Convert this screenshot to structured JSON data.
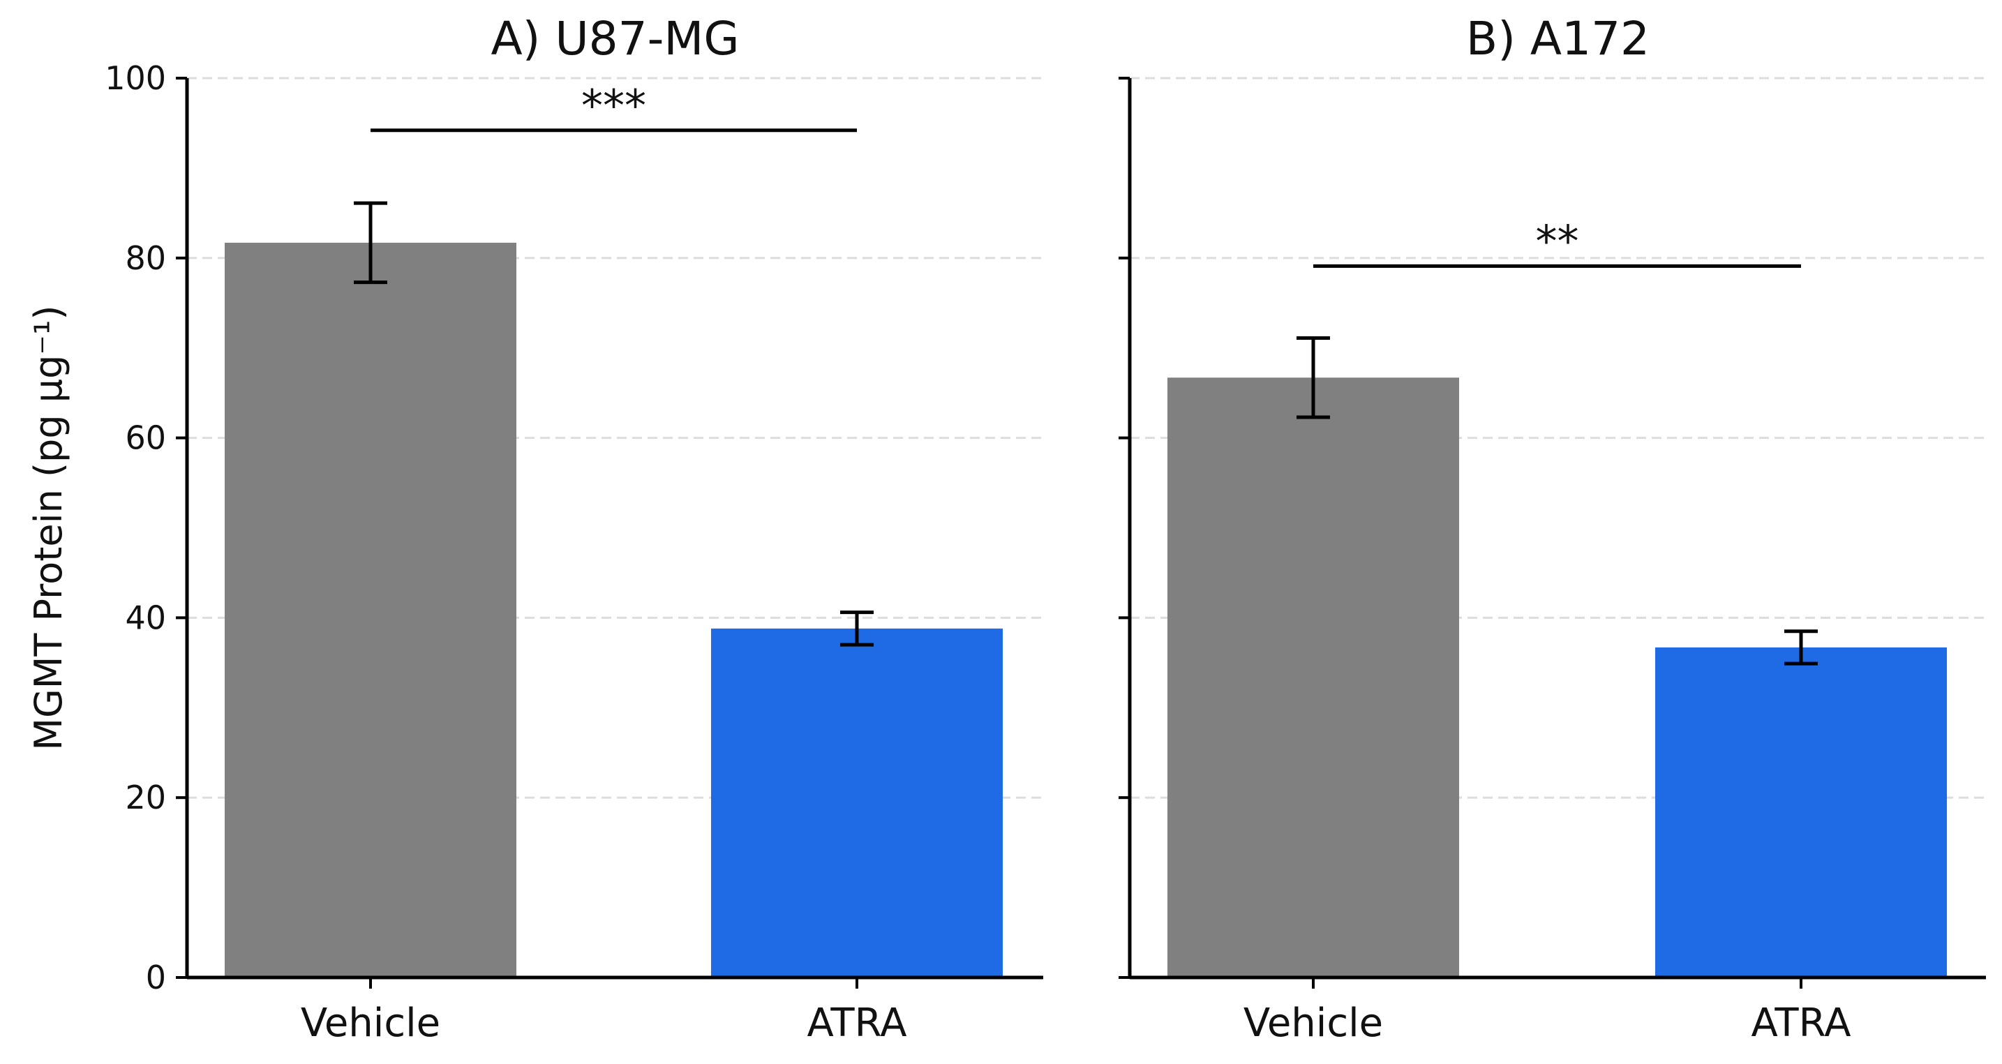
{
  "chart_data": [
    {
      "type": "bar",
      "title": "A) U87-MG",
      "categories": [
        "Vehicle",
        "ATRA"
      ],
      "values": [
        81.7,
        38.8
      ],
      "errors": [
        4.4,
        1.8
      ],
      "colors": [
        "#808080",
        "#1f6be6"
      ],
      "ylabel": "MGMT Protein (pg µg⁻¹)",
      "ylim": [
        0,
        100
      ],
      "yticks": [
        "0",
        "20",
        "40",
        "60",
        "80",
        "100"
      ],
      "grid": true,
      "significance": {
        "label": "***",
        "y": 94.2
      }
    },
    {
      "type": "bar",
      "title": "B) A172",
      "categories": [
        "Vehicle",
        "ATRA"
      ],
      "values": [
        66.7,
        36.7
      ],
      "errors": [
        4.4,
        1.8
      ],
      "colors": [
        "#808080",
        "#1f6be6"
      ],
      "ylabel": "",
      "ylim": [
        0,
        100
      ],
      "yticks": [],
      "grid": true,
      "significance": {
        "label": "**",
        "y": 79.1
      }
    }
  ]
}
